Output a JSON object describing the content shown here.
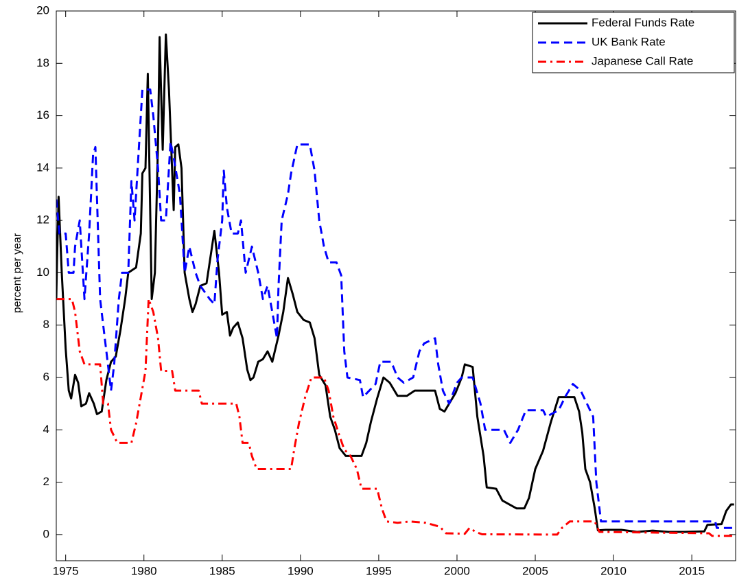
{
  "chart_data": {
    "type": "line",
    "y_label": "percent per year",
    "xlim": [
      1974.4,
      2017.8
    ],
    "xticks": [
      1975,
      1980,
      1985,
      1990,
      1995,
      2000,
      2005,
      2010,
      2015
    ],
    "ylim": [
      -1,
      20
    ],
    "yticks": [
      0,
      2,
      4,
      6,
      8,
      10,
      12,
      14,
      16,
      18,
      20
    ],
    "legend": "upper right",
    "series": [
      {
        "name": "Federal Funds Rate",
        "color": "#000000",
        "style": "solid",
        "x": [
          1974.4,
          1974.45,
          1974.55,
          1974.75,
          1975.0,
          1975.2,
          1975.35,
          1975.6,
          1975.8,
          1976.0,
          1976.3,
          1976.5,
          1976.8,
          1977.0,
          1977.3,
          1977.6,
          1977.9,
          1978.2,
          1978.5,
          1978.8,
          1979.0,
          1979.5,
          1979.8,
          1979.9,
          1980.1,
          1980.25,
          1980.5,
          1980.7,
          1980.9,
          1981.0,
          1981.2,
          1981.4,
          1981.6,
          1981.9,
          1982.0,
          1982.2,
          1982.4,
          1982.6,
          1982.9,
          1983.1,
          1983.3,
          1983.6,
          1984.0,
          1984.5,
          1984.8,
          1985.0,
          1985.3,
          1985.5,
          1985.7,
          1986.0,
          1986.3,
          1986.6,
          1986.8,
          1987.0,
          1987.3,
          1987.6,
          1987.9,
          1988.2,
          1988.6,
          1988.9,
          1989.2,
          1989.5,
          1989.8,
          1990.2,
          1990.6,
          1990.9,
          1991.2,
          1991.6,
          1991.9,
          1992.2,
          1992.5,
          1992.9,
          1993.5,
          1993.9,
          1994.2,
          1994.5,
          1994.9,
          1995.3,
          1995.7,
          1996.2,
          1996.8,
          1997.3,
          1998.0,
          1998.6,
          1998.9,
          1999.2,
          1999.6,
          1999.9,
          2000.3,
          2000.5,
          2001.0,
          2001.3,
          2001.7,
          2001.9,
          2002.5,
          2002.9,
          2003.5,
          2003.8,
          2004.3,
          2004.6,
          2005.0,
          2005.5,
          2006.0,
          2006.5,
          2007.5,
          2007.8,
          2008.0,
          2008.2,
          2008.5,
          2008.8,
          2009.0,
          2009.5,
          2010.5,
          2011.5,
          2012.5,
          2013.5,
          2014.5,
          2015.8,
          2016.0,
          2016.9,
          2017.2,
          2017.5,
          2017.7
        ],
        "values": [
          9.0,
          10.5,
          12.9,
          10.0,
          7.1,
          5.5,
          5.2,
          6.1,
          5.8,
          4.9,
          5.0,
          5.4,
          5.0,
          4.6,
          4.7,
          5.9,
          6.6,
          6.8,
          7.8,
          9.0,
          10.0,
          10.2,
          11.5,
          13.8,
          14.0,
          17.6,
          9.0,
          10.0,
          15.0,
          19.0,
          14.7,
          19.1,
          17.0,
          12.4,
          14.8,
          14.9,
          14.0,
          10.0,
          9.0,
          8.5,
          8.8,
          9.5,
          9.6,
          11.6,
          10.0,
          8.4,
          8.5,
          7.6,
          7.9,
          8.1,
          7.5,
          6.3,
          5.9,
          6.0,
          6.6,
          6.7,
          7.0,
          6.6,
          7.6,
          8.5,
          9.8,
          9.2,
          8.5,
          8.2,
          8.1,
          7.5,
          6.1,
          5.7,
          4.5,
          4.0,
          3.3,
          3.0,
          3.0,
          3.0,
          3.5,
          4.3,
          5.2,
          6.0,
          5.8,
          5.3,
          5.3,
          5.5,
          5.5,
          5.5,
          4.8,
          4.7,
          5.1,
          5.4,
          6.0,
          6.5,
          6.4,
          4.5,
          3.0,
          1.8,
          1.75,
          1.3,
          1.1,
          1.0,
          1.0,
          1.4,
          2.5,
          3.2,
          4.3,
          5.25,
          5.25,
          4.7,
          3.9,
          2.5,
          2.0,
          1.0,
          0.16,
          0.18,
          0.18,
          0.1,
          0.15,
          0.1,
          0.1,
          0.12,
          0.37,
          0.4,
          0.9,
          1.15,
          1.15
        ]
      },
      {
        "name": "UK Bank Rate",
        "color": "#0000ff",
        "style": "dashed",
        "x": [
          1974.4,
          1974.6,
          1975.0,
          1975.2,
          1975.5,
          1975.6,
          1975.9,
          1976.2,
          1976.5,
          1976.75,
          1976.9,
          1977.2,
          1977.4,
          1977.6,
          1977.9,
          1978.1,
          1978.4,
          1978.6,
          1979.0,
          1979.2,
          1979.4,
          1979.6,
          1979.9,
          1980.4,
          1980.6,
          1980.9,
          1981.1,
          1981.4,
          1981.7,
          1981.9,
          1982.3,
          1982.6,
          1982.9,
          1983.3,
          1983.6,
          1984.2,
          1984.5,
          1984.7,
          1985.0,
          1985.1,
          1985.3,
          1985.6,
          1986.0,
          1986.2,
          1986.5,
          1986.9,
          1987.3,
          1987.6,
          1987.9,
          1988.2,
          1988.5,
          1988.6,
          1988.8,
          1989.2,
          1989.4,
          1989.8,
          1990.6,
          1990.9,
          1991.2,
          1991.5,
          1991.8,
          1992.3,
          1992.6,
          1992.8,
          1993.0,
          1993.8,
          1994.0,
          1994.8,
          1995.1,
          1995.8,
          1996.2,
          1996.6,
          1997.2,
          1997.6,
          1997.9,
          1998.6,
          1998.8,
          1999.1,
          1999.5,
          2000.0,
          2000.3,
          2001.0,
          2001.5,
          2001.8,
          2003.0,
          2003.4,
          2003.9,
          2004.4,
          2005.5,
          2005.7,
          2006.5,
          2006.9,
          2007.4,
          2007.9,
          2008.3,
          2008.7,
          2008.9,
          2009.2,
          2016.5,
          2016.6,
          2017.7
        ],
        "values": [
          12.8,
          11.5,
          11.5,
          10.0,
          10.0,
          11.0,
          12.0,
          9.0,
          11.5,
          14.5,
          14.8,
          9.0,
          8.0,
          7.0,
          5.5,
          6.5,
          9.0,
          10.0,
          10.0,
          13.5,
          12.0,
          14.0,
          17.0,
          17.0,
          16.0,
          14.0,
          12.0,
          12.0,
          15.0,
          14.4,
          13.0,
          10.0,
          11.0,
          10.0,
          9.5,
          9.0,
          8.8,
          10.5,
          12.0,
          13.9,
          12.5,
          11.5,
          11.5,
          12.0,
          10.0,
          11.0,
          10.0,
          9.0,
          9.5,
          8.5,
          7.5,
          9.5,
          12.0,
          13.0,
          13.8,
          14.9,
          14.9,
          13.9,
          12.0,
          11.0,
          10.4,
          10.4,
          9.9,
          7.0,
          6.0,
          5.9,
          5.25,
          5.75,
          6.6,
          6.6,
          6.0,
          5.8,
          6.0,
          7.0,
          7.3,
          7.5,
          6.5,
          5.5,
          5.0,
          5.8,
          6.0,
          6.0,
          5.0,
          4.0,
          4.0,
          3.5,
          4.0,
          4.75,
          4.75,
          4.5,
          4.75,
          5.25,
          5.75,
          5.5,
          5.0,
          4.5,
          2.0,
          0.5,
          0.5,
          0.25,
          0.25
        ]
      },
      {
        "name": "Japanese Call Rate",
        "color": "#ff0000",
        "style": "dashdot",
        "x": [
          1974.4,
          1975.4,
          1975.6,
          1975.9,
          1976.2,
          1977.2,
          1977.4,
          1977.7,
          1977.9,
          1978.3,
          1979.2,
          1979.5,
          1979.8,
          1980.1,
          1980.3,
          1980.6,
          1980.9,
          1981.1,
          1981.8,
          1982.0,
          1983.5,
          1983.7,
          1985.9,
          1986.1,
          1986.3,
          1986.7,
          1986.9,
          1987.2,
          1989.4,
          1989.6,
          1989.9,
          1990.3,
          1990.7,
          1991.5,
          1991.8,
          1992.1,
          1992.5,
          1992.8,
          1993.2,
          1993.6,
          1993.9,
          1994.9,
          1995.2,
          1995.5,
          1996.2,
          1997.0,
          1998.0,
          1998.9,
          1999.3,
          2000.5,
          2000.8,
          2001.2,
          2001.6,
          2006.4,
          2006.7,
          2007.2,
          2008.8,
          2009.1,
          2016.1,
          2016.3,
          2017.7
        ],
        "values": [
          9.0,
          9.0,
          8.5,
          7.0,
          6.5,
          6.5,
          5.0,
          5.0,
          4.0,
          3.5,
          3.5,
          4.25,
          5.25,
          6.25,
          9.0,
          8.5,
          7.5,
          6.25,
          6.25,
          5.5,
          5.5,
          5.0,
          5.0,
          4.5,
          3.5,
          3.5,
          3.0,
          2.5,
          2.5,
          3.25,
          4.25,
          5.25,
          6.0,
          6.0,
          5.5,
          4.5,
          3.75,
          3.25,
          3.0,
          2.5,
          1.75,
          1.75,
          1.0,
          0.5,
          0.45,
          0.5,
          0.45,
          0.3,
          0.05,
          0.03,
          0.25,
          0.1,
          0.01,
          0.0,
          0.25,
          0.5,
          0.5,
          0.1,
          0.05,
          -0.05,
          -0.05
        ]
      }
    ]
  }
}
